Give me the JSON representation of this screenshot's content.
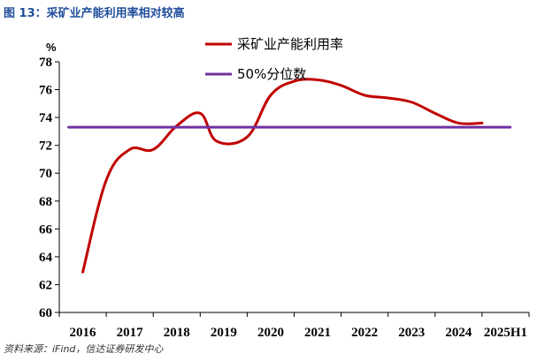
{
  "figure": {
    "title": "图 13：采矿业产能利用率相对较高",
    "source": "资料来源：iFind，信达证券研发中心"
  },
  "chart_data": {
    "type": "line",
    "ylabel": "%",
    "ylim": [
      60,
      78
    ],
    "yticks": [
      60,
      62,
      64,
      66,
      68,
      70,
      72,
      74,
      76,
      78
    ],
    "categories": [
      "2016",
      "2017",
      "2018",
      "2019",
      "2020",
      "2021",
      "2022",
      "2023",
      "2024",
      "2025H1"
    ],
    "grid": false,
    "legend_position": "top",
    "series": [
      {
        "name": "采矿业产能利用率",
        "color": "#c00000",
        "x": [
          0,
          0.5,
          1,
          1.5,
          2,
          2.5,
          2.85,
          3.5,
          4,
          4.5,
          5,
          5.5,
          6,
          6.5,
          7,
          7.5,
          8,
          8.5
        ],
        "values": [
          62.9,
          69.5,
          71.7,
          71.7,
          73.4,
          74.3,
          72.3,
          72.6,
          75.6,
          76.6,
          76.7,
          76.3,
          75.6,
          75.4,
          75.1,
          74.3,
          73.6,
          73.6
        ]
      },
      {
        "name": "50%分位数",
        "color": "#7030a0",
        "x": [
          -0.3,
          9.1
        ],
        "values": [
          73.3,
          73.3
        ]
      }
    ]
  }
}
